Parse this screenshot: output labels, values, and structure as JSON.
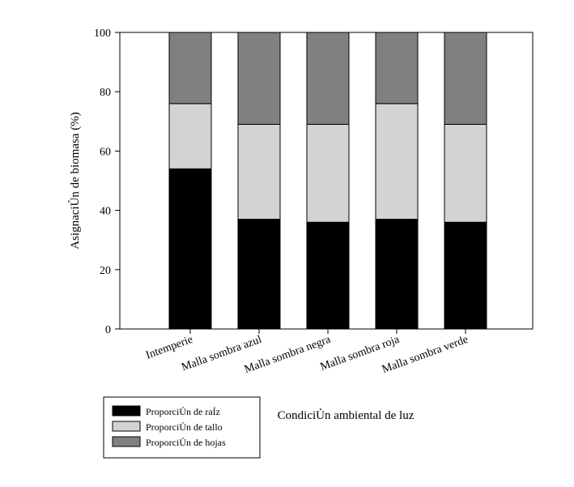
{
  "chart_data": {
    "type": "bar",
    "stacked": true,
    "title": "",
    "xlabel": "CondiciỦn ambiental de luz",
    "ylabel": "AsignaciỦn de biomasa (%)",
    "ylim": [
      0,
      100
    ],
    "yticks": [
      0,
      20,
      40,
      60,
      80,
      100
    ],
    "grid": false,
    "legend_position": "bottom-left",
    "categories": [
      "Intemperie",
      "Malla sombra azul",
      "Malla sombra negra",
      "Malla sombra roja",
      "Malla sombra verde"
    ],
    "series": [
      {
        "name": "ProporciỦn de raỈz",
        "color": "#000000",
        "values": [
          54,
          37,
          36,
          37,
          36
        ]
      },
      {
        "name": "ProporciỦn de tallo",
        "color": "#d3d3d3",
        "values": [
          22,
          32,
          33,
          39,
          33
        ]
      },
      {
        "name": "ProporciỦn de hojas",
        "color": "#808080",
        "values": [
          24,
          31,
          31,
          24,
          31
        ]
      }
    ]
  }
}
